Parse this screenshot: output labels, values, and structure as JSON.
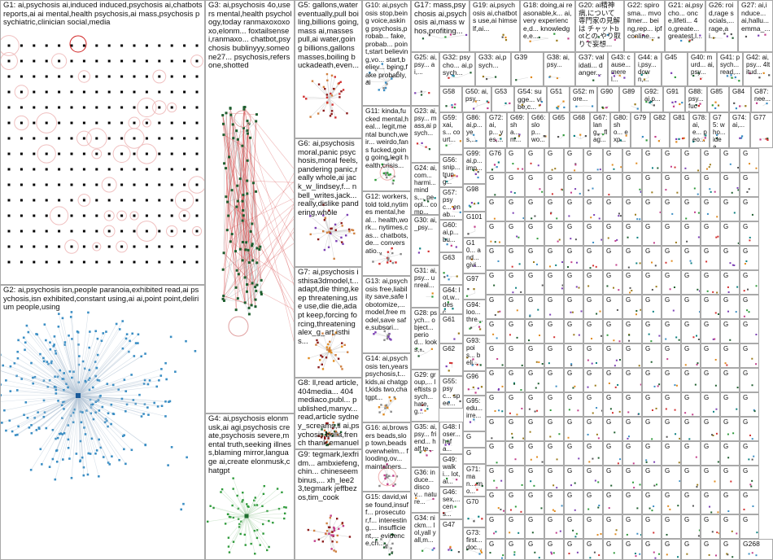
{
  "groups": [
    {
      "id": "G1",
      "label": "G1: ai,psychosis ai,induced induced,psychosis ai,chatbots reports,ai ai mental,health psychosis,ai mass,psychosis psychiatric,clinician social,media"
    },
    {
      "id": "G2",
      "label": "G2: ai,psychosis isn,people paranoia,exhibited read,ai psychosis,isn exhibited,constant using,ai ai,point point,delirium people,using"
    },
    {
      "id": "G3",
      "label": "G3: ai,psychosis 4o,users mental,health psychology,today ranmaxoxoxoxo,elonm... foxtailsensei,ranmaxo... chatbot,psychosis bublinyyy,someone27... psychosis,refers one,shotted"
    },
    {
      "id": "G4",
      "label": "G4: ai,psychosis elonmusk,ai agi,psychosis create,psychosis severe,mental truth,seeking illness,blaming mirror,language ai,create elonmusk,chatgpt"
    },
    {
      "id": "G5",
      "label": "G5: gallons,water eventually,pull boiling,billions going,mass ai,masses pull,ai water,going billions,gallons masses,boiling buckadeath,even..."
    },
    {
      "id": "G6",
      "label": "G6: ai,psychosis moral,panic psychosis,moral feels,pandering panic,really whole,ai jack_w_lindsey,f... nbell_writes,jack... really,dislike pandering,whole"
    },
    {
      "id": "G7",
      "label": "G7: ai,psychosis isthisa3dmodel,t... adapt,die thing,keep threatening,use use,die die,adapt keep,forcing forcing,threatening alex_g_art,isthis..."
    },
    {
      "id": "G8",
      "label": "G8: ll,read article,404media... 404mediaco,publ... published,manyv... read,article sydney_screams,ll ai,psychosis bella,french thank,emanuelm... roommate,hang"
    },
    {
      "id": "G9",
      "label": "G9: tegmark,lexfridm... ambxiefeng,chin... chineseembinus,... xh_lee23,tegmark jeffbezos,tim_cook"
    },
    {
      "id": "G10",
      "label": "G10: ai,psychosis stop,being voice,asking psychosis,probab... fake,probab... point,start believing,vo... start,believ... being,fake probably,ai"
    },
    {
      "id": "G11",
      "label": "G11: kinda,fucked mental,heal... legit,mental bunch,weir... weirdo,fans fucked,going going,legit health,crisis..."
    },
    {
      "id": "G12",
      "label": "G12: workers,told told,nytimes mental,heal... health,work... nytimes,cas... chatbots,de... conversatio..."
    },
    {
      "id": "G13",
      "label": "G13: ai,psychosis free,liability save,safe lobotomize,... model,free model,save safe,subscri..."
    },
    {
      "id": "G14",
      "label": "G14: ai,psychosis ten,years psychosis,t... kids,ai chatgpt,kids two,chatgpt..."
    },
    {
      "id": "G15",
      "label": "G15: david,wise found,insuff... prosecutor,f... interesting,... insufficient,... evidence,ch..."
    },
    {
      "id": "G16",
      "label": "G16: ai,browsers beads,slop town,beads overwhelm... flooding,ov... maintainers..."
    },
    {
      "id": "G17",
      "label": "G17: mass,psychosis ai,psychosis ai,mass whos,profiting..."
    },
    {
      "id": "G18",
      "label": "G18: doing,ai reasonable,k... ai,very experience,d... knowledge,e..."
    },
    {
      "id": "G19",
      "label": "G19: ai,psychosis ai,chatbots use,ai himself,ai..."
    },
    {
      "id": "G20",
      "label": "G20: ai精神病,について 専門家の見解は チャットbotとの やり取りで妄想..."
    },
    {
      "id": "G21",
      "label": "G21: ai,psycho... once,lifeti... 4o,greate... greatest,l..."
    },
    {
      "id": "G22",
      "label": "G22: spirosma... mvollmer... being,rep... ipfconline..."
    },
    {
      "id": "G23",
      "label": "G23: ai,psy... mass,ai psych..."
    },
    {
      "id": "G24",
      "label": "G24: ai,com... harmi... minds,... peopl... comp..."
    },
    {
      "id": "G25",
      "label": "G25: ai,psy... ai,..."
    },
    {
      "id": "G26",
      "label": "G26: roid,rage socials,... rage,ai..."
    },
    {
      "id": "G27",
      "label": "G27: ai,induce... ai,hallu... emma_..."
    },
    {
      "id": "G28",
      "label": "G28: psych... object... period... looks,..."
    },
    {
      "id": "G29",
      "label": "G29: group,... leftists psych... hate,g..."
    },
    {
      "id": "G30",
      "label": "G30: ai,_psy..."
    },
    {
      "id": "G31",
      "label": "G31: ai,psy... unreal..."
    },
    {
      "id": "G32",
      "label": "G32: psycho... ai,psych..."
    },
    {
      "id": "G33",
      "label": "G33: ai,psych..."
    },
    {
      "id": "G34",
      "label": "G34: nickm... lol,yall yall,m..."
    },
    {
      "id": "G35",
      "label": "G35: ai,psy... friend... half,te..."
    },
    {
      "id": "G36",
      "label": "G36: induce... discov... nature..."
    },
    {
      "id": "G37",
      "label": "G37: validati... danger..."
    },
    {
      "id": "G38",
      "label": "G38: ai,psy..."
    },
    {
      "id": "G39",
      "label": "G39"
    },
    {
      "id": "G40",
      "label": "G40: murd... ai,psy..."
    },
    {
      "id": "G41",
      "label": "G41: psych... read,..."
    },
    {
      "id": "G42",
      "label": "G42: ai,psy... 4ltitud..."
    },
    {
      "id": "G43",
      "label": "G43: cause... merel..."
    },
    {
      "id": "G44",
      "label": "G44: ai,psy... down,..."
    },
    {
      "id": "G45",
      "label": "G45"
    },
    {
      "id": "G46",
      "label": "G46: sex,... cens..."
    },
    {
      "id": "G47",
      "label": "G47"
    },
    {
      "id": "G48",
      "label": "G48: loser... hafa..."
    },
    {
      "id": "G49",
      "label": "G49: walki... lot,ai..."
    },
    {
      "id": "G50",
      "label": "G50: ai,psy..."
    },
    {
      "id": "G51",
      "label": "G51"
    },
    {
      "id": "G52",
      "label": "G52: more..."
    },
    {
      "id": "G53",
      "label": "G53"
    },
    {
      "id": "G54",
      "label": "G54: sugge... vibe,c..."
    },
    {
      "id": "G55",
      "label": "G55: psyc... spee..."
    },
    {
      "id": "G56",
      "label": "G56: snip... trung..."
    },
    {
      "id": "G57",
      "label": "G57: psyc... enab..."
    },
    {
      "id": "G58",
      "label": "G58"
    },
    {
      "id": "G59",
      "label": "G59: xai,s... court..."
    },
    {
      "id": "G60",
      "label": "G60: ai,p... bu..."
    },
    {
      "id": "G61",
      "label": "G61"
    },
    {
      "id": "G62",
      "label": "G62"
    },
    {
      "id": "G63",
      "label": "G63"
    },
    {
      "id": "G64",
      "label": "G64: lot,w... desc..."
    },
    {
      "id": "G65",
      "label": "G65"
    },
    {
      "id": "G66",
      "label": "G66: slop... wo..."
    },
    {
      "id": "G67",
      "label": "G67: lang... flag..."
    },
    {
      "id": "G68",
      "label": "G68"
    },
    {
      "id": "G69",
      "label": "G69: sha... m..."
    },
    {
      "id": "G70",
      "label": "G70"
    },
    {
      "id": "G71",
      "label": "G71: man... mo..."
    },
    {
      "id": "G72",
      "label": "G72: ai,p... yes,..."
    },
    {
      "id": "G73",
      "label": "G73: first... doc..."
    },
    {
      "id": "G74",
      "label": "G74: ai,..."
    },
    {
      "id": "G75",
      "label": "G75: who... idea..."
    },
    {
      "id": "G76",
      "label": "G76"
    },
    {
      "id": "G77",
      "label": "G77"
    },
    {
      "id": "G78",
      "label": "G78: ai,e... peo..."
    },
    {
      "id": "G79",
      "label": "G79"
    },
    {
      "id": "G80",
      "label": "G80: sho... exp..."
    },
    {
      "id": "G81",
      "label": "G81"
    },
    {
      "id": "G82",
      "label": "G82"
    },
    {
      "id": "G83",
      "label": "G83"
    },
    {
      "id": "G84",
      "label": "G84"
    },
    {
      "id": "G85",
      "label": "G85"
    },
    {
      "id": "G86",
      "label": "G86: ai,p... yes,..."
    },
    {
      "id": "G87",
      "label": "G87: nee..."
    },
    {
      "id": "G88",
      "label": "G88: psy... fuck..."
    },
    {
      "id": "G89",
      "label": "G89"
    },
    {
      "id": "G90",
      "label": "G90"
    },
    {
      "id": "G91",
      "label": "G91"
    },
    {
      "id": "G92",
      "label": "G92: ai,p..."
    },
    {
      "id": "G93",
      "label": "G93: pois... beli..."
    },
    {
      "id": "G94",
      "label": "G94: loo... thre..."
    },
    {
      "id": "G95",
      "label": "G95: edu... irre..."
    },
    {
      "id": "G96",
      "label": "G96"
    },
    {
      "id": "G97",
      "label": "G97"
    },
    {
      "id": "G98",
      "label": "G98"
    },
    {
      "id": "G99",
      "label": "G99: ai,p... imp..."
    },
    {
      "id": "G100",
      "label": "G10... and... givi..."
    },
    {
      "id": "G101",
      "label": "G101"
    }
  ],
  "minor_group_label": "G",
  "last_group_label": "G268",
  "colors": {
    "G1": "#000000",
    "G2": "#3b8ec4",
    "G3": "#1e5e2e",
    "G4": "#2e9a3a",
    "edge_red": "#d23030",
    "border": "#a9a9a9",
    "circle_red": "#e07070"
  }
}
